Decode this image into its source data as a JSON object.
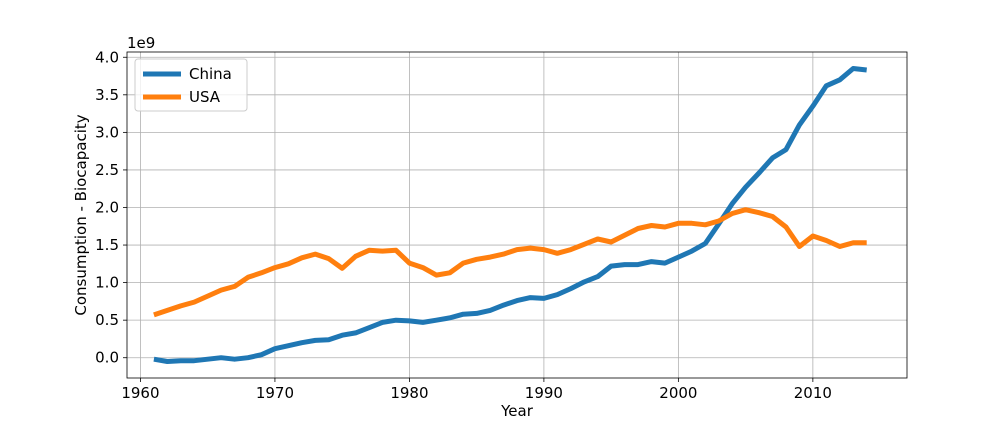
{
  "chart_data": {
    "type": "line",
    "xlabel": "Year",
    "ylabel": "Consumption - Biocapacity",
    "y_offset_label": "1e9",
    "xlim": [
      1959,
      2017
    ],
    "ylim": [
      -0.27,
      4.07
    ],
    "x_ticks": [
      1960,
      1970,
      1980,
      1990,
      2000,
      2010
    ],
    "x_tick_labels": [
      "1960",
      "1970",
      "1980",
      "1990",
      "2000",
      "2010"
    ],
    "y_ticks": [
      0,
      0.5,
      1.0,
      1.5,
      2.0,
      2.5,
      3.0,
      3.5,
      4.0
    ],
    "y_tick_labels": [
      "0.0",
      "0.5",
      "1.0",
      "1.5",
      "2.0",
      "2.5",
      "3.0",
      "3.5",
      "4.0"
    ],
    "grid": true,
    "legend_position": "top-left",
    "x": [
      1961,
      1962,
      1963,
      1964,
      1965,
      1966,
      1967,
      1968,
      1969,
      1970,
      1971,
      1972,
      1973,
      1974,
      1975,
      1976,
      1977,
      1978,
      1979,
      1980,
      1981,
      1982,
      1983,
      1984,
      1985,
      1986,
      1987,
      1988,
      1989,
      1990,
      1991,
      1992,
      1993,
      1994,
      1995,
      1996,
      1997,
      1998,
      1999,
      2000,
      2001,
      2002,
      2003,
      2004,
      2005,
      2006,
      2007,
      2008,
      2009,
      2010,
      2011,
      2012,
      2013,
      2014
    ],
    "series": [
      {
        "name": "China",
        "color": "#1f77b4",
        "values": [
          -0.02,
          -0.05,
          -0.04,
          -0.04,
          -0.02,
          0.0,
          -0.02,
          0.0,
          0.04,
          0.12,
          0.16,
          0.2,
          0.23,
          0.24,
          0.3,
          0.33,
          0.4,
          0.47,
          0.5,
          0.49,
          0.47,
          0.5,
          0.53,
          0.58,
          0.59,
          0.63,
          0.7,
          0.76,
          0.8,
          0.79,
          0.84,
          0.92,
          1.01,
          1.08,
          1.22,
          1.24,
          1.24,
          1.28,
          1.26,
          1.34,
          1.42,
          1.52,
          1.78,
          2.05,
          2.27,
          2.46,
          2.66,
          2.77,
          3.1,
          3.35,
          3.62,
          3.7,
          3.85,
          3.83
        ]
      },
      {
        "name": "USA",
        "color": "#ff7f0e",
        "values": [
          0.57,
          0.63,
          0.69,
          0.74,
          0.82,
          0.9,
          0.95,
          1.07,
          1.13,
          1.2,
          1.25,
          1.33,
          1.38,
          1.32,
          1.19,
          1.35,
          1.43,
          1.42,
          1.43,
          1.26,
          1.2,
          1.1,
          1.13,
          1.26,
          1.31,
          1.34,
          1.38,
          1.44,
          1.46,
          1.44,
          1.39,
          1.44,
          1.51,
          1.58,
          1.54,
          1.63,
          1.72,
          1.76,
          1.74,
          1.79,
          1.79,
          1.77,
          1.82,
          1.92,
          1.97,
          1.93,
          1.88,
          1.74,
          1.48,
          1.62,
          1.56,
          1.48,
          1.53,
          1.53
        ]
      }
    ]
  }
}
